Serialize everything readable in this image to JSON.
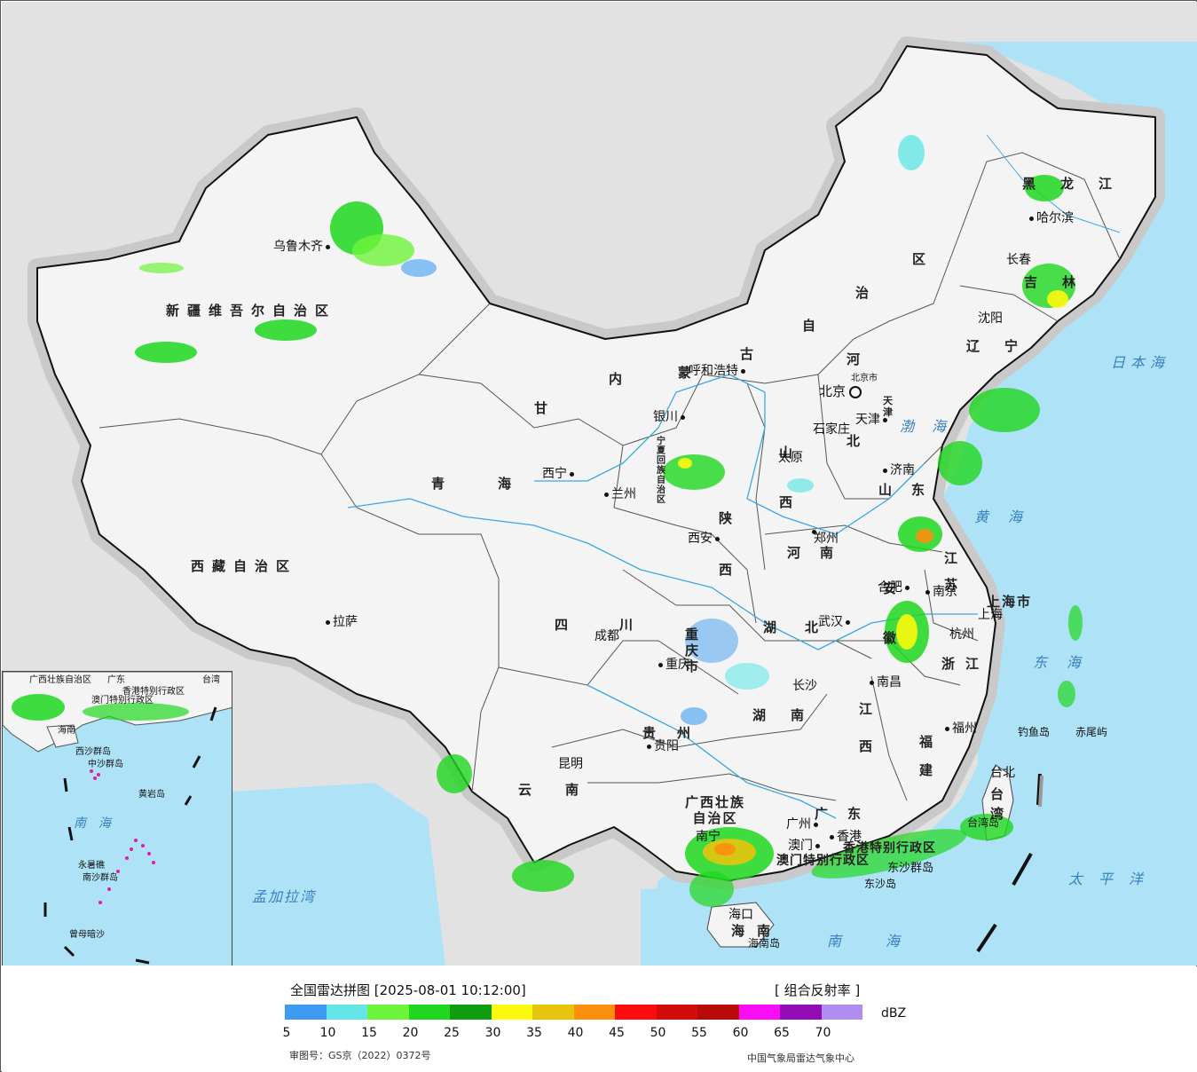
{
  "map": {
    "provinces": [
      {
        "id": "xinjiang",
        "label": "新疆维吾尔自治区"
      },
      {
        "id": "xizang",
        "label": "西藏自治区"
      },
      {
        "id": "qinghai",
        "label": "青海"
      },
      {
        "id": "gansu",
        "label": "甘"
      },
      {
        "id": "neimenggu-1",
        "label": "内"
      },
      {
        "id": "neimenggu-2",
        "label": "蒙"
      },
      {
        "id": "neimenggu-3",
        "label": "古"
      },
      {
        "id": "neimenggu-4",
        "label": "自"
      },
      {
        "id": "neimenggu-5",
        "label": "治"
      },
      {
        "id": "neimenggu-6",
        "label": "区"
      },
      {
        "id": "heilongjiang",
        "label": "黑龙江"
      },
      {
        "id": "jilin",
        "label": "吉林"
      },
      {
        "id": "liaoning",
        "label": "辽宁"
      },
      {
        "id": "hebei-1",
        "label": "河"
      },
      {
        "id": "hebei-2",
        "label": "北"
      },
      {
        "id": "shanxi",
        "label": "山西"
      },
      {
        "id": "shandong",
        "label": "山东"
      },
      {
        "id": "henan",
        "label": "河南"
      },
      {
        "id": "shaanxi",
        "label": "陕西"
      },
      {
        "id": "ningxia",
        "label": "宁夏回族自治区"
      },
      {
        "id": "sichuan",
        "label": "四川"
      },
      {
        "id": "hubei",
        "label": "湖北"
      },
      {
        "id": "anhui",
        "label": "安徽"
      },
      {
        "id": "jiangsu",
        "label": "江苏"
      },
      {
        "id": "zhejiang",
        "label": "浙江"
      },
      {
        "id": "chongqing",
        "label": "重庆市"
      },
      {
        "id": "guizhou",
        "label": "贵州"
      },
      {
        "id": "hunan",
        "label": "湖南"
      },
      {
        "id": "jiangxi",
        "label": "江西"
      },
      {
        "id": "fujian",
        "label": "福建"
      },
      {
        "id": "yunnan",
        "label": "云南"
      },
      {
        "id": "guangxi",
        "label": "广西壮族自治区"
      },
      {
        "id": "guangdong",
        "label": "广东"
      },
      {
        "id": "taiwan",
        "label": "台湾"
      },
      {
        "id": "hainan",
        "label": "海南"
      },
      {
        "id": "shanghai",
        "label": "上海市"
      },
      {
        "id": "tianjin",
        "label": "天津"
      },
      {
        "id": "hk",
        "label": "香港特别行政区"
      },
      {
        "id": "macau",
        "label": "澳门特别行政区"
      }
    ],
    "cities": [
      {
        "id": "urumqi",
        "label": "乌鲁木齐"
      },
      {
        "id": "lhasa",
        "label": "拉萨"
      },
      {
        "id": "xining",
        "label": "西宁"
      },
      {
        "id": "lanzhou",
        "label": "兰州"
      },
      {
        "id": "yinchuan",
        "label": "银川"
      },
      {
        "id": "hohhot",
        "label": "呼和浩特"
      },
      {
        "id": "beijing",
        "label": "北京"
      },
      {
        "id": "beijing-city",
        "label": "北京市"
      },
      {
        "id": "tianjin-city",
        "label": "天津"
      },
      {
        "id": "shijiazhuang",
        "label": "石家庄"
      },
      {
        "id": "taiyuan",
        "label": "太原"
      },
      {
        "id": "jinan",
        "label": "济南"
      },
      {
        "id": "zhengzhou",
        "label": "郑州"
      },
      {
        "id": "xian",
        "label": "西安"
      },
      {
        "id": "chengdu",
        "label": "成都"
      },
      {
        "id": "chongqing-city",
        "label": "重庆"
      },
      {
        "id": "wuhan",
        "label": "武汉"
      },
      {
        "id": "hefei",
        "label": "合肥"
      },
      {
        "id": "nanjing",
        "label": "南京"
      },
      {
        "id": "shanghai-city",
        "label": "上海"
      },
      {
        "id": "hangzhou",
        "label": "杭州"
      },
      {
        "id": "nanchang",
        "label": "南昌"
      },
      {
        "id": "changsha",
        "label": "长沙"
      },
      {
        "id": "guiyang",
        "label": "贵阳"
      },
      {
        "id": "kunming",
        "label": "昆明"
      },
      {
        "id": "nanning",
        "label": "南宁"
      },
      {
        "id": "guangzhou",
        "label": "广州"
      },
      {
        "id": "hongkong",
        "label": "香港"
      },
      {
        "id": "macao",
        "label": "澳门"
      },
      {
        "id": "fuzhou",
        "label": "福州"
      },
      {
        "id": "taipei",
        "label": "台北"
      },
      {
        "id": "haikou",
        "label": "海口"
      },
      {
        "id": "harbin",
        "label": "哈尔滨"
      },
      {
        "id": "changchun",
        "label": "长春"
      },
      {
        "id": "shenyang",
        "label": "沈阳"
      }
    ],
    "seas": [
      {
        "id": "japan-sea",
        "label": "日本海"
      },
      {
        "id": "bohai",
        "label": "渤海"
      },
      {
        "id": "yellow-sea",
        "label": "黄海"
      },
      {
        "id": "east-sea",
        "label": "东海"
      },
      {
        "id": "pacific",
        "label": "太平洋"
      },
      {
        "id": "south-sea",
        "label": "南海"
      },
      {
        "id": "bengal",
        "label": "孟加拉湾"
      }
    ],
    "islands": [
      {
        "id": "diaoyu",
        "label": "钓鱼岛"
      },
      {
        "id": "chiwei",
        "label": "赤尾屿"
      },
      {
        "id": "dongsha-qundao",
        "label": "东沙群岛"
      },
      {
        "id": "dongsha-dao",
        "label": "东沙岛"
      },
      {
        "id": "taiwan-dao",
        "label": "台湾岛"
      },
      {
        "id": "hainan-dao",
        "label": "海南岛"
      }
    ],
    "inset_labels": [
      {
        "id": "inset-guangxi",
        "label": "广西壮族自治区"
      },
      {
        "id": "inset-guangdong",
        "label": "广东"
      },
      {
        "id": "inset-taiwan",
        "label": "台湾"
      },
      {
        "id": "inset-hk",
        "label": "香港特别行政区"
      },
      {
        "id": "inset-macau",
        "label": "澳门特别行政区"
      },
      {
        "id": "inset-hainan",
        "label": "海南"
      },
      {
        "id": "inset-xisha",
        "label": "西沙群岛"
      },
      {
        "id": "inset-zhongsha",
        "label": "中沙群岛"
      },
      {
        "id": "inset-huangyan",
        "label": "黄岩岛"
      },
      {
        "id": "inset-south-sea",
        "label": "南海"
      },
      {
        "id": "inset-nansha",
        "label": "南沙群岛"
      },
      {
        "id": "inset-yongshu",
        "label": "永暑礁"
      },
      {
        "id": "inset-zengmu",
        "label": "曾母暗沙"
      }
    ]
  },
  "legend": {
    "title": "全国雷达拼图 [2025-08-01 10:12:00]",
    "product": "[ 组合反射率 ]",
    "unit": "dBZ",
    "ticks": [
      "5",
      "10",
      "15",
      "20",
      "25",
      "30",
      "35",
      "40",
      "45",
      "50",
      "55",
      "60",
      "65",
      "70"
    ],
    "colors": [
      "#3d9cf2",
      "#65e6e6",
      "#6ef43a",
      "#1fd71f",
      "#0f9d0f",
      "#fbf90d",
      "#e6c40d",
      "#fb8f0e",
      "#fb0d0d",
      "#d40b0b",
      "#b80a0a",
      "#f90df5",
      "#930cb6",
      "#b08ef0"
    ],
    "approval": "审图号：GS京（2022）0372号",
    "agency": "中国气象局雷达气象中心"
  }
}
